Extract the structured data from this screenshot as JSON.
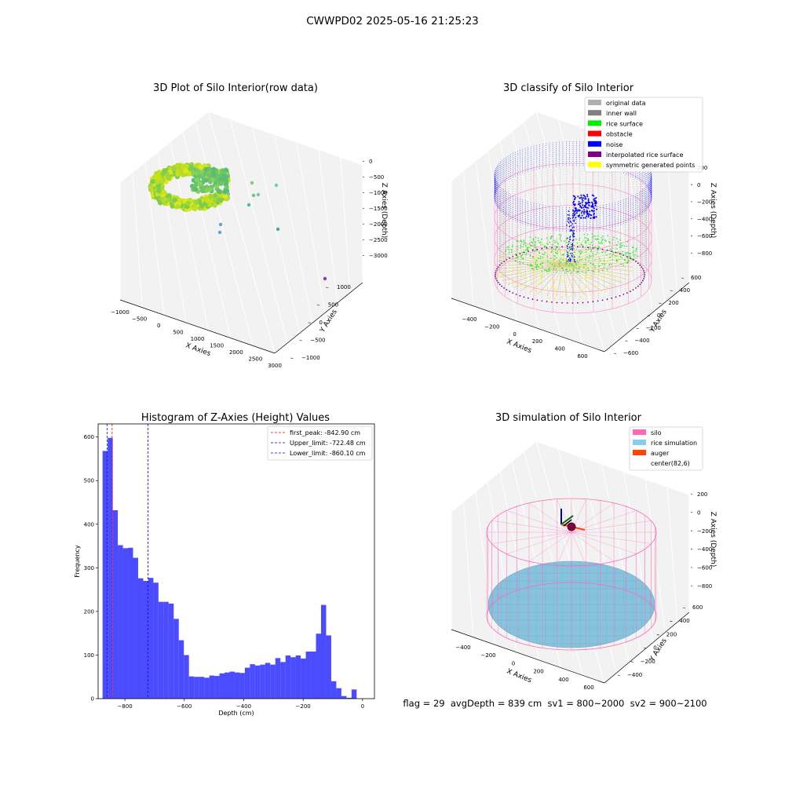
{
  "suptitle": "CWWPD02 2025-05-16 21:25:23",
  "panels": {
    "raw": {
      "title": "3D Plot of Silo Interior(row data)",
      "xlabel": "X Axies",
      "ylabel": "Y Axies",
      "zlabel": "Z Axies (Depth)",
      "xticks": [
        "−1000",
        "−500",
        "0",
        "500",
        "1000",
        "1500",
        "2000",
        "2500",
        "3000"
      ],
      "yticks": [
        "1000",
        "500",
        "0",
        "−500",
        "−1000"
      ],
      "zticks": [
        "0",
        "−500",
        "−1000",
        "−1500",
        "−2000",
        "−2500",
        "−3000"
      ]
    },
    "classify": {
      "title": "3D classify of Silo Interior",
      "xlabel": "X Axies",
      "ylabel": "Y Axies",
      "zlabel": "Z Axies (Depth)",
      "xticks": [
        "−400",
        "−200",
        "0",
        "200",
        "400",
        "600"
      ],
      "yticks": [
        "600",
        "400",
        "200",
        "0",
        "−200",
        "−400",
        "−600"
      ],
      "zticks": [
        "200",
        "0",
        "−200",
        "−400",
        "−600",
        "−800"
      ],
      "legend": [
        {
          "label": "original data",
          "color": "#b0b0b0"
        },
        {
          "label": "inner wall",
          "color": "#808080"
        },
        {
          "label": "rice surface",
          "color": "#00ee00"
        },
        {
          "label": "obstacle",
          "color": "#ff0000"
        },
        {
          "label": "noise",
          "color": "#0000ff"
        },
        {
          "label": "interpolated rice surface",
          "color": "#800080"
        },
        {
          "label": "symmetric generated points",
          "color": "#ffff00"
        }
      ]
    },
    "histogram": {
      "title": "Histogram of Z-Axies (Height) Values",
      "legend": [
        {
          "label": "first_peak: -842.90 cm",
          "color": "#ff0000"
        },
        {
          "label": "Upper_limit: -722.48 cm",
          "color": "#0000ff"
        },
        {
          "label": "Lower_limit: -860.10 cm",
          "color": "#0000ff"
        }
      ]
    },
    "simulation": {
      "title": "3D simulation of Silo Interior",
      "xlabel": "X Axies",
      "ylabel": "Y Axies",
      "zlabel": "Z Axies (Depth)",
      "xticks": [
        "−400",
        "−200",
        "0",
        "200",
        "400",
        "600"
      ],
      "yticks": [
        "600",
        "400",
        "200",
        "0",
        "−200",
        "−400"
      ],
      "zticks": [
        "200",
        "0",
        "−200",
        "−400",
        "−600",
        "−800"
      ],
      "legend": [
        {
          "label": "silo",
          "color": "#ff69b4"
        },
        {
          "label": "rice simulation",
          "color": "#87ceeb"
        },
        {
          "label": "auger",
          "color": "#ff4500"
        },
        {
          "label": "center(82,6)",
          "color": ""
        }
      ]
    }
  },
  "status_line": "flag = 29  avgDepth = 839 cm  sv1 = 800~2000  sv2 = 900~2100",
  "chart_data": {
    "type": "bar",
    "title": "Histogram of Z-Axies (Height) Values",
    "xlabel": "Depth (cm)",
    "ylabel": "Frequency",
    "xlim": [
      -890,
      40
    ],
    "ylim": [
      0,
      630
    ],
    "xticks": [
      -800,
      -600,
      -400,
      -200,
      0
    ],
    "xtick_labels": [
      "−800",
      "−600",
      "−400",
      "−200",
      "0"
    ],
    "yticks": [
      0,
      100,
      200,
      300,
      400,
      500,
      600
    ],
    "bin_start": -875,
    "bin_width": 17.1,
    "values": [
      568,
      598,
      432,
      352,
      345,
      346,
      323,
      276,
      270,
      277,
      266,
      222,
      222,
      218,
      183,
      134,
      100,
      51,
      50,
      50,
      48,
      53,
      52,
      58,
      60,
      62,
      60,
      59,
      71,
      79,
      76,
      78,
      82,
      78,
      93,
      84,
      99,
      95,
      99,
      92,
      108,
      108,
      149,
      215,
      145,
      40,
      24,
      6,
      2,
      21
    ],
    "bar_color": "#0000ff",
    "vlines": [
      {
        "x": -842.9,
        "color": "#ff0000"
      },
      {
        "x": -722.48,
        "color": "#0000ff"
      },
      {
        "x": -860.1,
        "color": "#0000ff"
      }
    ],
    "legend_position": "upper right"
  }
}
